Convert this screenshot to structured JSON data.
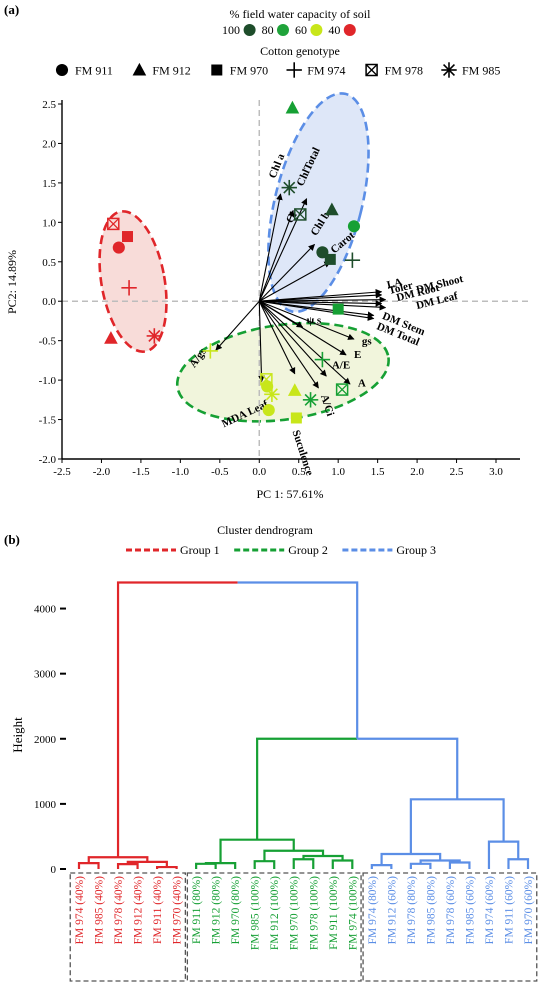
{
  "panel_a_label": "(a)",
  "panel_b_label": "(b)",
  "legend_water": {
    "title": "% field water capacity of soil",
    "items": [
      {
        "label": "100",
        "color": "#1e4d2b"
      },
      {
        "label": "80",
        "color": "#1fa33a"
      },
      {
        "label": "60",
        "color": "#c8e61a"
      },
      {
        "label": "40",
        "color": "#e0262a"
      }
    ]
  },
  "legend_genotype": {
    "title": "Cotton genotype",
    "items": [
      {
        "label": "FM 911",
        "shape": "circle"
      },
      {
        "label": "FM 912",
        "shape": "triangle"
      },
      {
        "label": "FM 970",
        "shape": "square"
      },
      {
        "label": "FM 974",
        "shape": "plus"
      },
      {
        "label": "FM 978",
        "shape": "boxx"
      },
      {
        "label": "FM 985",
        "shape": "asterisk"
      }
    ]
  },
  "colors": {
    "group1": "#e0262a",
    "group2": "#16a034",
    "group3": "#5b8ee6",
    "dark_green": "#1e4d2b",
    "light_green": "#c8e61a"
  },
  "chart_data": [
    {
      "type": "scatter",
      "title": "",
      "xlabel": "PC 1: 57.61%",
      "ylabel": "PC2: 14.89%",
      "xlim": [
        -2.5,
        3.0
      ],
      "ylim": [
        -2.0,
        2.5
      ],
      "xticks": [
        "-2.5",
        "-2.0",
        "-1.5",
        "-1.0",
        "-0.5",
        "0.0",
        "0.5",
        "1.0",
        "1.5",
        "2.0",
        "2.5",
        "3.0"
      ],
      "yticks": [
        "-2.0",
        "-1.5",
        "-1.0",
        "-0.5",
        "0.0",
        "0.5",
        "1.0",
        "1.5",
        "2.0",
        "2.5"
      ],
      "points": [
        {
          "g": "FM 978",
          "shape": "boxx",
          "c": "#e0262a",
          "x": -1.85,
          "y": 0.98
        },
        {
          "g": "FM 970",
          "shape": "square",
          "c": "#e0262a",
          "x": -1.67,
          "y": 0.82
        },
        {
          "g": "FM 911",
          "shape": "circle",
          "c": "#e0262a",
          "x": -1.78,
          "y": 0.68
        },
        {
          "g": "FM 974",
          "shape": "plus",
          "c": "#e0262a",
          "x": -1.65,
          "y": 0.17
        },
        {
          "g": "FM 912",
          "shape": "triangle",
          "c": "#e0262a",
          "x": -1.88,
          "y": -0.47
        },
        {
          "g": "FM 985",
          "shape": "asterisk",
          "c": "#e0262a",
          "x": -1.33,
          "y": -0.44
        },
        {
          "g": "FM 912",
          "shape": "triangle",
          "c": "#16a034",
          "x": 0.42,
          "y": 2.45
        },
        {
          "g": "FM 985",
          "shape": "asterisk",
          "c": "#1e4d2b",
          "x": 0.38,
          "y": 1.44
        },
        {
          "g": "FM 978",
          "shape": "boxx",
          "c": "#1e4d2b",
          "x": 0.52,
          "y": 1.1
        },
        {
          "g": "FM 912",
          "shape": "triangle",
          "c": "#1e4d2b",
          "x": 0.92,
          "y": 1.16
        },
        {
          "g": "FM 911",
          "shape": "circle",
          "c": "#16a034",
          "x": 1.2,
          "y": 0.95
        },
        {
          "g": "FM 911",
          "shape": "circle",
          "c": "#1e4d2b",
          "x": 0.8,
          "y": 0.62
        },
        {
          "g": "FM 970",
          "shape": "square",
          "c": "#1e4d2b",
          "x": 0.9,
          "y": 0.53
        },
        {
          "g": "FM 974",
          "shape": "plus",
          "c": "#1e4d2b",
          "x": 1.18,
          "y": 0.52
        },
        {
          "g": "FM 970",
          "shape": "square",
          "c": "#16a034",
          "x": 1.0,
          "y": -0.1
        },
        {
          "g": "FM 974",
          "shape": "plus",
          "c": "#c8e61a",
          "x": -0.62,
          "y": -0.63
        },
        {
          "g": "FM 978",
          "shape": "boxx",
          "c": "#c8e61a",
          "x": 0.09,
          "y": -0.99
        },
        {
          "g": "FM 911",
          "shape": "circle",
          "c": "#c8e61a",
          "x": 0.1,
          "y": -1.08
        },
        {
          "g": "FM 985",
          "shape": "asterisk",
          "c": "#c8e61a",
          "x": 0.16,
          "y": -1.18
        },
        {
          "g": "FM 911",
          "shape": "circle",
          "c": "#c8e61a",
          "x": 0.12,
          "y": -1.38
        },
        {
          "g": "FM 912",
          "shape": "triangle",
          "c": "#c8e61a",
          "x": 0.45,
          "y": -1.13
        },
        {
          "g": "FM 970",
          "shape": "square",
          "c": "#c8e61a",
          "x": 0.47,
          "y": -1.48
        },
        {
          "g": "FM 974",
          "shape": "plus",
          "c": "#16a034",
          "x": 0.8,
          "y": -0.74
        },
        {
          "g": "FM 978",
          "shape": "boxx",
          "c": "#16a034",
          "x": 1.05,
          "y": -1.12
        },
        {
          "g": "FM 985",
          "shape": "asterisk",
          "c": "#16a034",
          "x": 0.65,
          "y": -1.25
        }
      ],
      "loadings": [
        {
          "label": "Chl a",
          "x": 0.27,
          "y": 1.36
        },
        {
          "label": "Ci",
          "x": 0.43,
          "y": 1.15
        },
        {
          "label": "ChlTotal",
          "x": 0.6,
          "y": 1.3
        },
        {
          "label": "Chl b",
          "x": 0.7,
          "y": 0.72
        },
        {
          "label": "Carot",
          "x": 0.9,
          "y": 0.5
        },
        {
          "label": "LA",
          "x": 1.55,
          "y": 0.12
        },
        {
          "label": "Toler",
          "x": 1.55,
          "y": 0.08
        },
        {
          "label": "DM Shoot",
          "x": 1.6,
          "y": 0.02
        },
        {
          "label": "DM Root",
          "x": 1.55,
          "y": -0.03
        },
        {
          "label": "DM Leaf",
          "x": 1.6,
          "y": -0.08
        },
        {
          "label": "DM Stem",
          "x": 1.45,
          "y": -0.18
        },
        {
          "label": "DM Total",
          "x": 1.45,
          "y": -0.22
        },
        {
          "label": "ψ s",
          "x": 0.55,
          "y": -0.33
        },
        {
          "label": "gs",
          "x": 1.2,
          "y": -0.48
        },
        {
          "label": "E",
          "x": 1.1,
          "y": -0.68
        },
        {
          "label": "A/E",
          "x": 0.85,
          "y": -0.95
        },
        {
          "label": "A",
          "x": 1.15,
          "y": -1.05
        },
        {
          "label": "A/Ci",
          "x": 0.75,
          "y": -1.1
        },
        {
          "label": "A/gs",
          "x": -0.55,
          "y": -0.62
        },
        {
          "label": "MDA Leaf",
          "x": 0.03,
          "y": -1.02
        },
        {
          "label": "Suculence",
          "x": 0.45,
          "y": -0.92
        }
      ],
      "ellipses": [
        {
          "group": "Group 1",
          "color": "#e0262a"
        },
        {
          "group": "Group 2",
          "color": "#16a034"
        },
        {
          "group": "Group 3",
          "color": "#5b8ee6"
        }
      ]
    },
    {
      "type": "dendrogram",
      "title": "Cluster dendrogram",
      "ylabel": "Height",
      "ylim": [
        0,
        4500
      ],
      "yticks": [
        "0",
        "1000",
        "2000",
        "3000",
        "4000"
      ],
      "legend": [
        {
          "label": "Group 1",
          "color": "#e0262a"
        },
        {
          "label": "Group 2",
          "color": "#16a034"
        },
        {
          "label": "Group 3",
          "color": "#5b8ee6"
        }
      ],
      "leaves": [
        {
          "label": "FM 974 (40%)",
          "group": 1
        },
        {
          "label": "FM 985 (40%)",
          "group": 1
        },
        {
          "label": "FM 978 (40%)",
          "group": 1
        },
        {
          "label": "FM 912 (40%)",
          "group": 1
        },
        {
          "label": "FM 911 (40%)",
          "group": 1
        },
        {
          "label": "FM 970 (40%)",
          "group": 1
        },
        {
          "label": "FM 911 (80%)",
          "group": 2
        },
        {
          "label": "FM 912 (80%)",
          "group": 2
        },
        {
          "label": "FM 970 (80%)",
          "group": 2
        },
        {
          "label": "FM 985 (100%)",
          "group": 2
        },
        {
          "label": "FM 912 (100%)",
          "group": 2
        },
        {
          "label": "FM 970 (100%)",
          "group": 2
        },
        {
          "label": "FM 978 (100%)",
          "group": 2
        },
        {
          "label": "FM 911 (100%)",
          "group": 2
        },
        {
          "label": "FM 974 (100%)",
          "group": 2
        },
        {
          "label": "FM 974 (80%)",
          "group": 3
        },
        {
          "label": "FM 912 (60%)",
          "group": 3
        },
        {
          "label": "FM 978 (80%)",
          "group": 3
        },
        {
          "label": "FM 985 (80%)",
          "group": 3
        },
        {
          "label": "FM 978 (60%)",
          "group": 3
        },
        {
          "label": "FM 985 (60%)",
          "group": 3
        },
        {
          "label": "FM 974 (60%)",
          "group": 3
        },
        {
          "label": "FM 911 (60%)",
          "group": 3
        },
        {
          "label": "FM 970 (60%)",
          "group": 3
        }
      ],
      "merges": [
        {
          "a": [
            0
          ],
          "b": [
            1
          ],
          "h": 90
        },
        {
          "a": [
            2
          ],
          "b": [
            3
          ],
          "h": 75
        },
        {
          "a": [
            4
          ],
          "b": [
            5
          ],
          "h": 30
        },
        {
          "a": [
            2,
            3
          ],
          "b": [
            4,
            5
          ],
          "h": 110
        },
        {
          "a": [
            0,
            1
          ],
          "b": [
            2,
            3,
            4,
            5
          ],
          "h": 180
        },
        {
          "a": [
            6
          ],
          "b": [
            7
          ],
          "h": 80
        },
        {
          "a": [
            6,
            7
          ],
          "b": [
            8
          ],
          "h": 90
        },
        {
          "a": [
            9
          ],
          "b": [
            10
          ],
          "h": 120
        },
        {
          "a": [
            11
          ],
          "b": [
            12
          ],
          "h": 150
        },
        {
          "a": [
            13
          ],
          "b": [
            14
          ],
          "h": 130
        },
        {
          "a": [
            11,
            12
          ],
          "b": [
            13,
            14
          ],
          "h": 200
        },
        {
          "a": [
            9,
            10
          ],
          "b": [
            11,
            12,
            13,
            14
          ],
          "h": 280
        },
        {
          "a": [
            6,
            7,
            8
          ],
          "b": [
            9,
            10,
            11,
            12,
            13,
            14
          ],
          "h": 450
        },
        {
          "a": [
            15
          ],
          "b": [
            16
          ],
          "h": 60
        },
        {
          "a": [
            17
          ],
          "b": [
            18
          ],
          "h": 80
        },
        {
          "a": [
            19
          ],
          "b": [
            20
          ],
          "h": 100
        },
        {
          "a": [
            17,
            18
          ],
          "b": [
            19,
            20
          ],
          "h": 130
        },
        {
          "a": [
            15,
            16
          ],
          "b": [
            17,
            18,
            19,
            20
          ],
          "h": 230
        },
        {
          "a": [
            22
          ],
          "b": [
            23
          ],
          "h": 150
        },
        {
          "a": [
            21
          ],
          "b": [
            22,
            23
          ],
          "h": 420
        },
        {
          "a": [
            15,
            16,
            17,
            18,
            19,
            20
          ],
          "b": [
            21,
            22,
            23
          ],
          "h": 1070
        },
        {
          "a": [
            6,
            7,
            8,
            9,
            10,
            11,
            12,
            13,
            14
          ],
          "b": [
            15,
            16,
            17,
            18,
            19,
            20,
            21,
            22,
            23
          ],
          "h": 2000
        },
        {
          "a": [
            0,
            1,
            2,
            3,
            4,
            5
          ],
          "b": [
            6,
            7,
            8,
            9,
            10,
            11,
            12,
            13,
            14,
            15,
            16,
            17,
            18,
            19,
            20,
            21,
            22,
            23
          ],
          "h": 4400
        }
      ]
    }
  ]
}
